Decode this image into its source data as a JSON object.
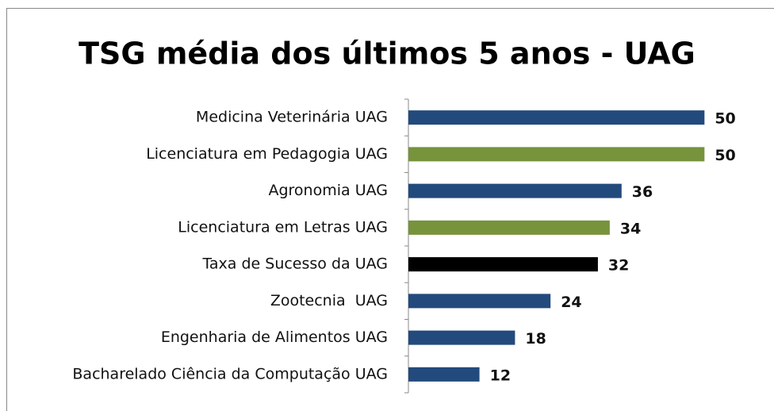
{
  "chart_data": {
    "type": "barh",
    "title": "TSG média dos últimos 5 anos - UAG",
    "categories": [
      "Medicina Veterinária UAG",
      "Licenciatura em Pedagogia UAG",
      "Agronomia UAG",
      "Licenciatura em Letras UAG",
      "Taxa de Sucesso da UAG",
      "Zootecnia  UAG",
      "Engenharia de Alimentos UAG",
      "Bacharelado Ciência da Computação UAG"
    ],
    "values": [
      50,
      50,
      36,
      34,
      32,
      24,
      18,
      12
    ],
    "colors": [
      "#234a7c",
      "#77933c",
      "#234a7c",
      "#77933c",
      "#000000",
      "#234a7c",
      "#234a7c",
      "#234a7c"
    ],
    "xlim": [
      0,
      60
    ]
  }
}
